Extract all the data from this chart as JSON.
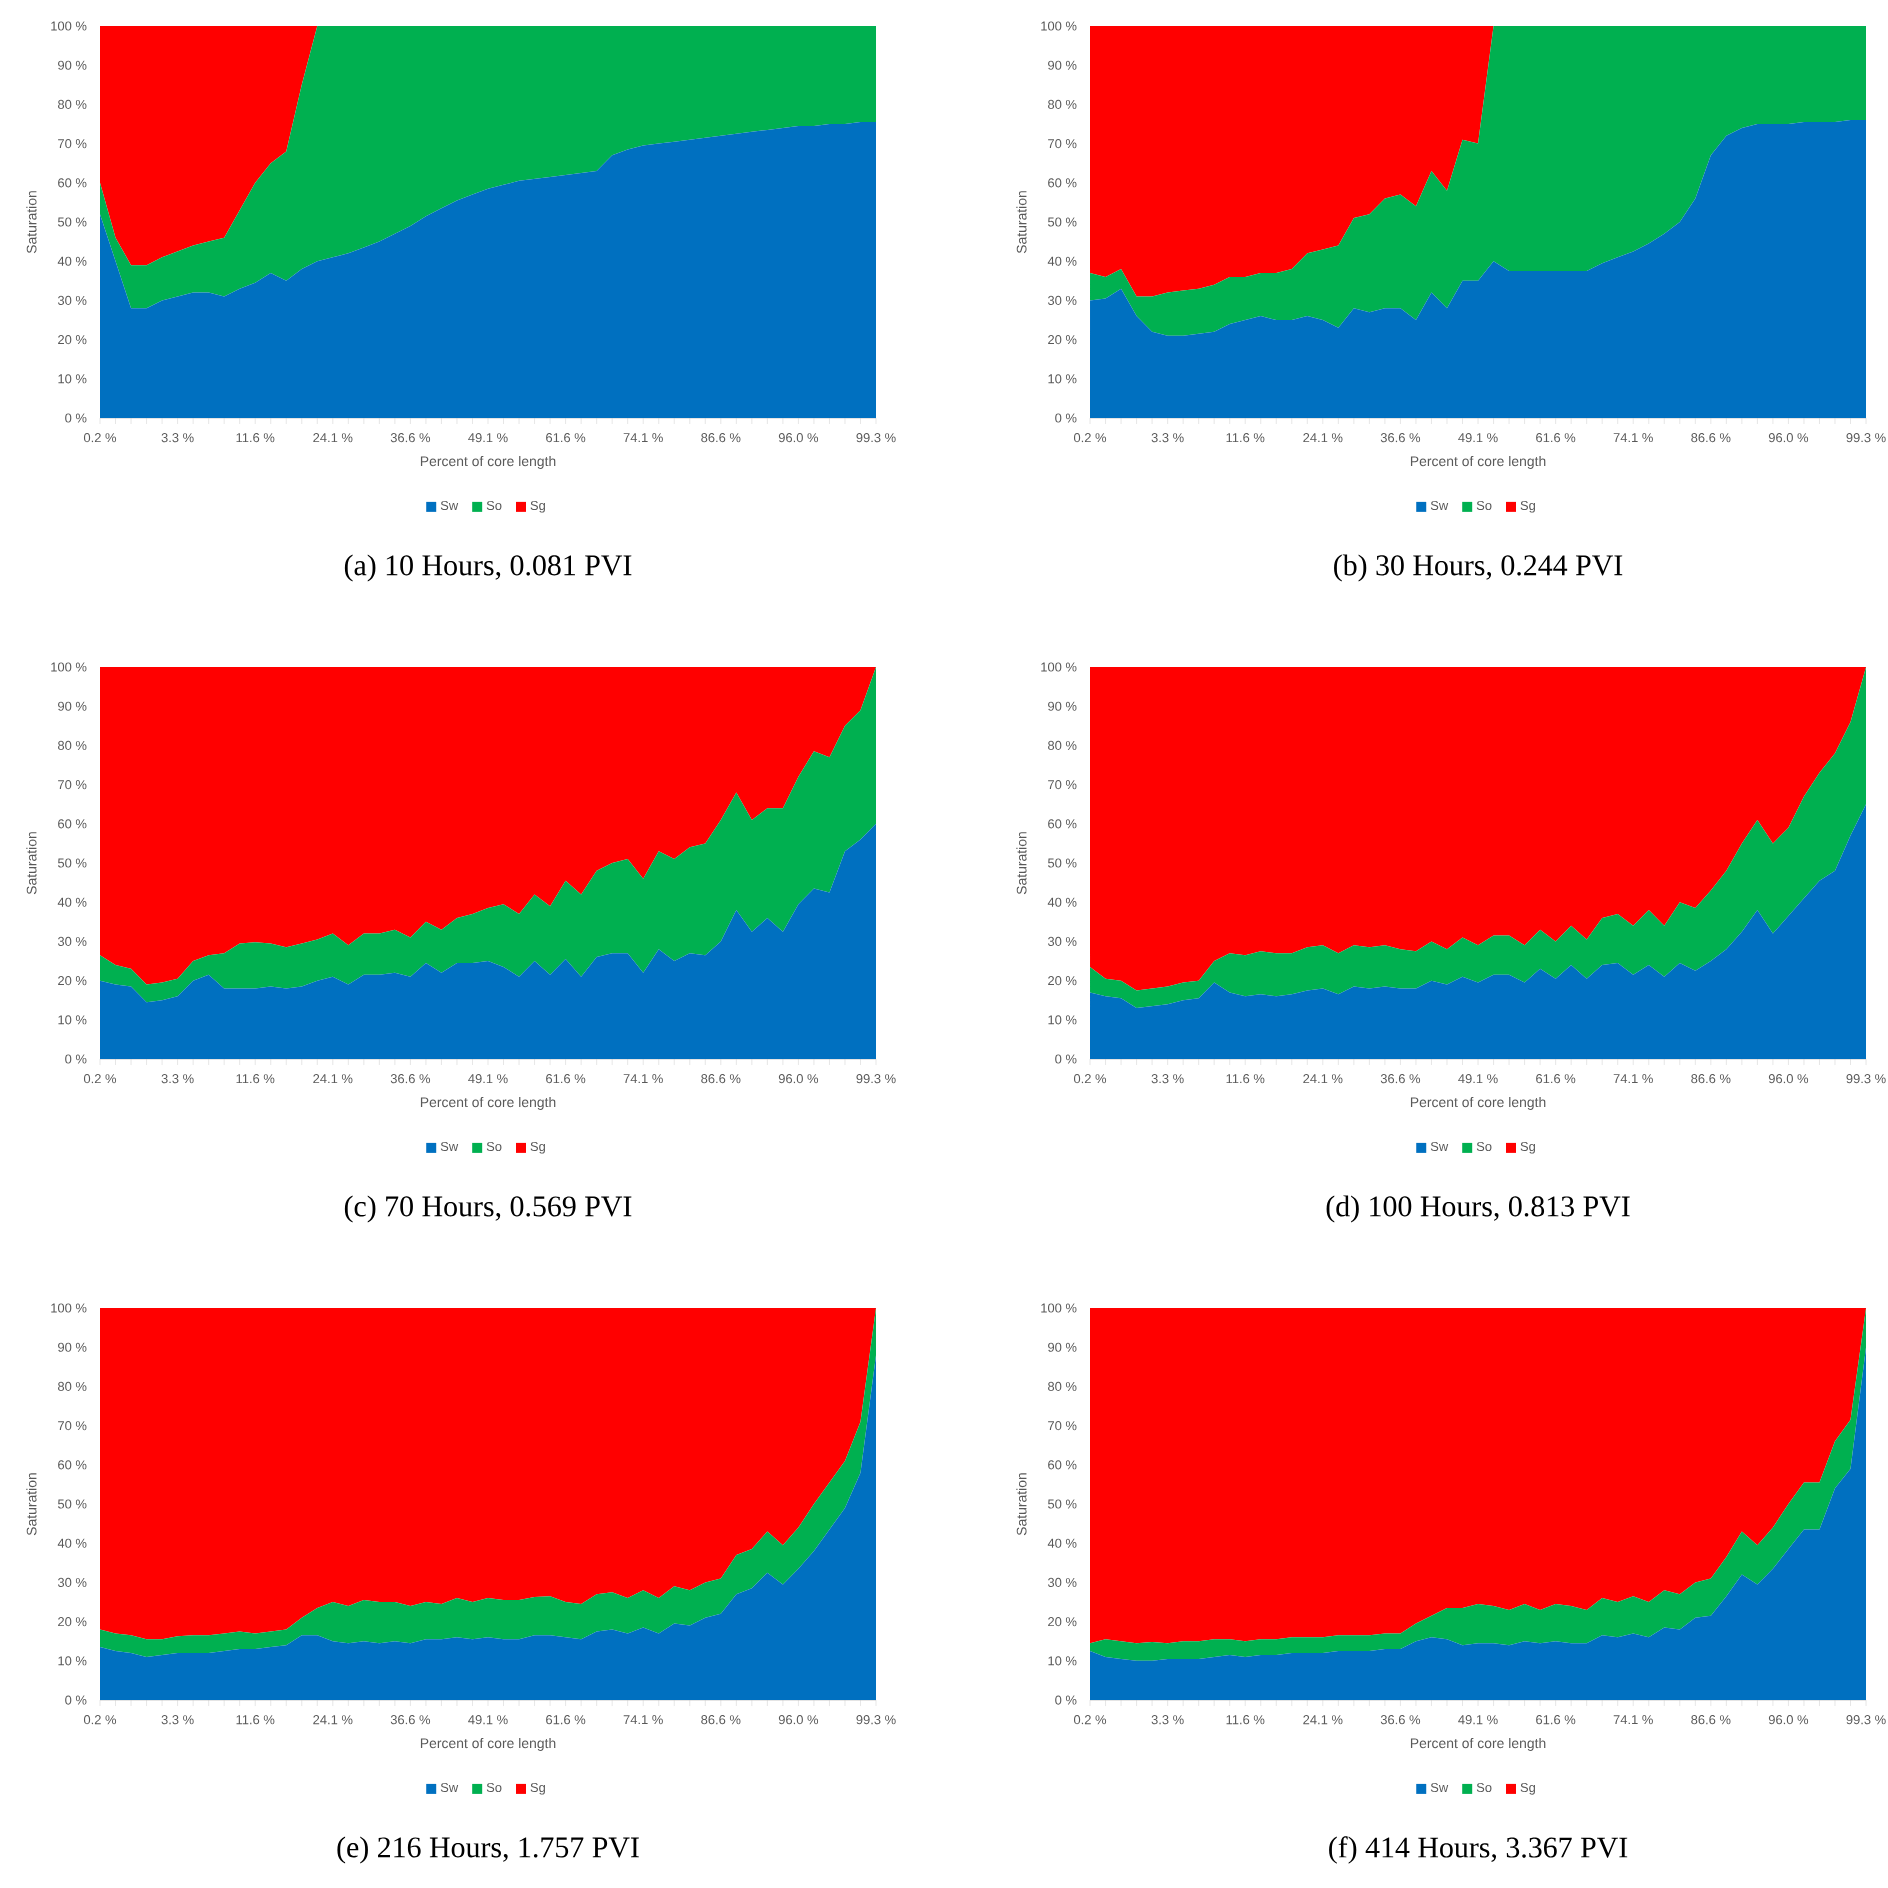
{
  "chart_data": [
    {
      "type": "area",
      "stacked": true,
      "title": "(a) 10 Hours, 0.081 PVI",
      "xlabel": "Percent of core length",
      "ylabel": "Saturation",
      "legend": "bottom",
      "ylim": [
        0,
        100
      ],
      "yticks": [
        {
          "value": 0,
          "label": "0 %"
        },
        {
          "value": 10,
          "label": "10 %"
        },
        {
          "value": 20,
          "label": "20 %"
        },
        {
          "value": 30,
          "label": "30 %"
        },
        {
          "value": 40,
          "label": "40 %"
        },
        {
          "value": 50,
          "label": "50 %"
        },
        {
          "value": 60,
          "label": "60 %"
        },
        {
          "value": 70,
          "label": "70 %"
        },
        {
          "value": 80,
          "label": "80 %"
        },
        {
          "value": 90,
          "label": "90 %"
        },
        {
          "value": 100,
          "label": "100 %"
        }
      ],
      "categories": [
        "0.2 %",
        null,
        null,
        null,
        null,
        "3.3 %",
        null,
        null,
        null,
        null,
        "11.6 %",
        null,
        null,
        null,
        null,
        "24.1 %",
        null,
        null,
        null,
        null,
        "36.6 %",
        null,
        null,
        null,
        null,
        "49.1 %",
        null,
        null,
        null,
        null,
        "61.6 %",
        null,
        null,
        null,
        null,
        "74.1 %",
        null,
        null,
        null,
        null,
        "86.6 %",
        null,
        null,
        null,
        null,
        "96.0 %",
        null,
        null,
        null,
        null,
        "99.3 %"
      ],
      "series": [
        {
          "name": "Sw",
          "color": "#0070c0",
          "values": [
            52,
            40,
            28,
            28,
            30,
            31,
            32,
            32,
            31,
            33,
            34.5,
            37,
            35,
            38,
            40,
            41,
            42,
            43.5,
            45,
            47,
            49,
            51.5,
            53.5,
            55.5,
            57,
            58.5,
            59.5,
            60.5,
            61,
            61.5,
            62,
            62.5,
            63,
            67,
            68.5,
            69.5,
            70,
            70.5,
            71,
            71.5,
            72,
            72.5,
            73,
            73.5,
            74,
            74.5,
            74.5,
            75,
            75,
            75.5,
            75.5
          ]
        },
        {
          "name": "So",
          "color": "#00b050",
          "values": [
            8,
            6,
            11,
            11,
            11,
            11.5,
            12,
            13,
            15,
            20,
            25.5,
            28,
            33,
            47,
            60,
            59,
            58,
            56.5,
            55,
            53,
            51,
            48.5,
            46.5,
            44.5,
            43,
            41.5,
            40.5,
            39.5,
            39,
            38.5,
            38,
            37.5,
            37,
            33,
            31.5,
            30.5,
            30,
            29.5,
            29,
            28.5,
            28,
            27.5,
            27,
            26.5,
            26,
            25.5,
            25.5,
            25,
            25,
            24.5,
            24.5
          ]
        },
        {
          "name": "Sg",
          "color": "#ff0000",
          "values": [
            40,
            54,
            61,
            61,
            59,
            57.5,
            56,
            55,
            54,
            47,
            40,
            35,
            32,
            15,
            0,
            0,
            0,
            0,
            0,
            0,
            0,
            0,
            0,
            0,
            0,
            0,
            0,
            0,
            0,
            0,
            0,
            0,
            0,
            0,
            0,
            0,
            0,
            0,
            0,
            0,
            0,
            0,
            0,
            0,
            0,
            0,
            0,
            0,
            0,
            0,
            0
          ]
        }
      ]
    },
    {
      "type": "area",
      "stacked": true,
      "title": "(b) 30 Hours, 0.244 PVI",
      "xlabel": "Percent of core length",
      "ylabel": "Saturation",
      "legend": "bottom",
      "ylim": [
        0,
        100
      ],
      "yticks": [
        {
          "value": 0,
          "label": "0 %"
        },
        {
          "value": 10,
          "label": "10 %"
        },
        {
          "value": 20,
          "label": "20 %"
        },
        {
          "value": 30,
          "label": "30 %"
        },
        {
          "value": 40,
          "label": "40 %"
        },
        {
          "value": 50,
          "label": "50 %"
        },
        {
          "value": 60,
          "label": "60 %"
        },
        {
          "value": 70,
          "label": "70 %"
        },
        {
          "value": 80,
          "label": "80 %"
        },
        {
          "value": 90,
          "label": "90 %"
        },
        {
          "value": 100,
          "label": "100 %"
        }
      ],
      "categories": [
        "0.2 %",
        null,
        null,
        null,
        null,
        "3.3 %",
        null,
        null,
        null,
        null,
        "11.6 %",
        null,
        null,
        null,
        null,
        "24.1 %",
        null,
        null,
        null,
        null,
        "36.6 %",
        null,
        null,
        null,
        null,
        "49.1 %",
        null,
        null,
        null,
        null,
        "61.6 %",
        null,
        null,
        null,
        null,
        "74.1 %",
        null,
        null,
        null,
        null,
        "86.6 %",
        null,
        null,
        null,
        null,
        "96.0 %",
        null,
        null,
        null,
        null,
        "99.3 %"
      ],
      "series": [
        {
          "name": "Sw",
          "color": "#0070c0",
          "values": [
            30,
            30.5,
            33,
            26,
            22,
            21,
            21,
            21.5,
            22,
            24,
            25,
            26,
            25,
            25,
            26,
            25,
            23,
            28,
            27,
            28,
            28,
            25,
            32,
            28,
            35,
            35,
            40,
            37.5,
            37.5,
            37.5,
            37.5,
            37.5,
            37.5,
            39.5,
            41,
            42.5,
            44.5,
            47,
            50,
            56,
            67,
            72,
            74,
            75,
            75,
            75,
            75.5,
            75.5,
            75.5,
            76,
            76
          ]
        },
        {
          "name": "So",
          "color": "#00b050",
          "values": [
            7,
            5.5,
            5,
            5,
            9,
            11,
            11.5,
            11.5,
            12,
            12,
            11,
            11,
            12,
            13,
            16,
            18,
            21,
            23,
            25,
            28,
            29,
            29,
            31,
            30,
            36,
            35,
            60,
            62.5,
            62.5,
            62.5,
            62.5,
            62.5,
            62.5,
            60.5,
            59,
            57.5,
            55.5,
            53,
            50,
            44,
            33,
            28,
            26,
            25,
            25,
            25,
            24.5,
            24.5,
            24.5,
            24,
            24
          ]
        },
        {
          "name": "Sg",
          "color": "#ff0000",
          "values": [
            63,
            64,
            62,
            69,
            69,
            68,
            67.5,
            67,
            66,
            64,
            64,
            63,
            63,
            62,
            58,
            57,
            56,
            49,
            48,
            44,
            43,
            46,
            37,
            42,
            29,
            30,
            0,
            0,
            0,
            0,
            0,
            0,
            0,
            0,
            0,
            0,
            0,
            0,
            0,
            0,
            0,
            0,
            0,
            0,
            0,
            0,
            0,
            0,
            0,
            0,
            0
          ]
        }
      ]
    },
    {
      "type": "area",
      "stacked": true,
      "title": "(c) 70 Hours, 0.569 PVI",
      "xlabel": "Percent of core length",
      "ylabel": "Saturation",
      "legend": "bottom",
      "ylim": [
        0,
        100
      ],
      "yticks": [
        {
          "value": 0,
          "label": "0 %"
        },
        {
          "value": 10,
          "label": "10 %"
        },
        {
          "value": 20,
          "label": "20 %"
        },
        {
          "value": 30,
          "label": "30 %"
        },
        {
          "value": 40,
          "label": "40 %"
        },
        {
          "value": 50,
          "label": "50 %"
        },
        {
          "value": 60,
          "label": "60 %"
        },
        {
          "value": 70,
          "label": "70 %"
        },
        {
          "value": 80,
          "label": "80 %"
        },
        {
          "value": 90,
          "label": "90 %"
        },
        {
          "value": 100,
          "label": "100 %"
        }
      ],
      "categories": [
        "0.2 %",
        null,
        null,
        null,
        null,
        "3.3 %",
        null,
        null,
        null,
        null,
        "11.6 %",
        null,
        null,
        null,
        null,
        "24.1 %",
        null,
        null,
        null,
        null,
        "36.6 %",
        null,
        null,
        null,
        null,
        "49.1 %",
        null,
        null,
        null,
        null,
        "61.6 %",
        null,
        null,
        null,
        null,
        "74.1 %",
        null,
        null,
        null,
        null,
        "86.6 %",
        null,
        null,
        null,
        null,
        "96.0 %",
        null,
        null,
        null,
        null,
        "99.3 %"
      ],
      "series": [
        {
          "name": "Sw",
          "color": "#0070c0",
          "values": [
            20,
            19,
            18.5,
            14.5,
            15,
            16,
            20,
            21.5,
            18,
            18,
            18,
            18.5,
            18,
            18.5,
            20,
            21,
            19,
            21.5,
            21.5,
            22,
            21,
            24.5,
            22,
            24.5,
            24.5,
            25,
            23.5,
            21,
            25,
            21.5,
            25.5,
            21,
            26,
            27,
            27,
            22,
            28,
            25,
            27,
            26.5,
            30,
            38,
            32.5,
            36,
            32.5,
            39.5,
            43.5,
            42.5,
            53,
            56,
            60
          ]
        },
        {
          "name": "So",
          "color": "#00b050",
          "values": [
            6.5,
            5,
            4.5,
            4.5,
            4.5,
            4.5,
            5,
            5,
            9,
            11.5,
            11.8,
            11,
            10.5,
            11,
            10.5,
            11,
            10,
            10.5,
            10.5,
            11,
            10,
            10.5,
            11,
            11.5,
            12.5,
            13.5,
            16,
            16,
            17,
            17.5,
            20,
            21,
            22,
            23,
            24,
            24,
            25,
            26,
            27,
            28.5,
            31,
            30,
            28.5,
            28,
            31.5,
            32.5,
            35,
            34.5,
            32,
            33,
            40
          ]
        },
        {
          "name": "Sg",
          "color": "#ff0000",
          "values": [
            73.5,
            76,
            77,
            81,
            80.5,
            79.5,
            75,
            73.5,
            73,
            70.5,
            70.2,
            70.5,
            71.5,
            70.5,
            69.5,
            68,
            71,
            68,
            68,
            67,
            69,
            65,
            67,
            64,
            63,
            61.5,
            60.5,
            63,
            58,
            61,
            54.5,
            58,
            52,
            50,
            49,
            54,
            47,
            49,
            46,
            45,
            39,
            32,
            39,
            36,
            36,
            28,
            21.5,
            23,
            15,
            11,
            0
          ]
        }
      ]
    },
    {
      "type": "area",
      "stacked": true,
      "title": "(d) 100 Hours, 0.813 PVI",
      "xlabel": "Percent of core length",
      "ylabel": "Saturation",
      "legend": "bottom",
      "ylim": [
        0,
        100
      ],
      "yticks": [
        {
          "value": 0,
          "label": "0 %"
        },
        {
          "value": 10,
          "label": "10 %"
        },
        {
          "value": 20,
          "label": "20 %"
        },
        {
          "value": 30,
          "label": "30 %"
        },
        {
          "value": 40,
          "label": "40 %"
        },
        {
          "value": 50,
          "label": "50 %"
        },
        {
          "value": 60,
          "label": "60 %"
        },
        {
          "value": 70,
          "label": "70 %"
        },
        {
          "value": 80,
          "label": "80 %"
        },
        {
          "value": 90,
          "label": "90 %"
        },
        {
          "value": 100,
          "label": "100 %"
        }
      ],
      "categories": [
        "0.2 %",
        null,
        null,
        null,
        null,
        "3.3 %",
        null,
        null,
        null,
        null,
        "11.6 %",
        null,
        null,
        null,
        null,
        "24.1 %",
        null,
        null,
        null,
        null,
        "36.6 %",
        null,
        null,
        null,
        null,
        "49.1 %",
        null,
        null,
        null,
        null,
        "61.6 %",
        null,
        null,
        null,
        null,
        "74.1 %",
        null,
        null,
        null,
        null,
        "86.6 %",
        null,
        null,
        null,
        null,
        "96.0 %",
        null,
        null,
        null,
        null,
        "99.3 %"
      ],
      "series": [
        {
          "name": "Sw",
          "color": "#0070c0",
          "values": [
            17,
            16,
            15.5,
            13,
            13.5,
            14,
            15,
            15.5,
            19.5,
            17,
            16,
            16.5,
            16,
            16.5,
            17.5,
            18,
            16.5,
            18.5,
            18,
            18.5,
            18,
            18,
            20,
            19,
            21,
            19.5,
            21.5,
            21.5,
            19.5,
            23,
            20.5,
            24,
            20.5,
            24,
            24.5,
            21.5,
            24,
            21,
            24.5,
            22.5,
            25,
            28,
            32.5,
            38,
            32,
            36.5,
            41,
            45.5,
            48,
            57,
            65
          ]
        },
        {
          "name": "So",
          "color": "#00b050",
          "values": [
            6.5,
            4.5,
            4.5,
            4.5,
            4.5,
            4.5,
            4.5,
            4.5,
            5.5,
            10,
            10.5,
            11,
            11,
            10.5,
            11,
            11,
            10.5,
            10.5,
            10.5,
            10.5,
            10,
            9.5,
            10,
            9,
            10,
            9.5,
            10,
            10,
            9.5,
            10,
            9.5,
            10,
            10,
            12,
            12.5,
            12.5,
            14,
            13,
            15.5,
            16,
            18,
            20,
            22.5,
            23,
            23,
            22.5,
            26,
            27.5,
            30,
            29,
            35
          ]
        },
        {
          "name": "Sg",
          "color": "#ff0000",
          "values": [
            76.5,
            79.5,
            80,
            82.5,
            82,
            81.5,
            80.5,
            80,
            75,
            73,
            73.5,
            72.5,
            73,
            73,
            71.5,
            71,
            73,
            71,
            71.5,
            71,
            72,
            72.5,
            70,
            72,
            69,
            71,
            68.5,
            68.5,
            71,
            67,
            70,
            66,
            69.5,
            64,
            63,
            66,
            62,
            66,
            60,
            61.5,
            57,
            52,
            45,
            39,
            45,
            41,
            33,
            27,
            22,
            14,
            0
          ]
        }
      ]
    },
    {
      "type": "area",
      "stacked": true,
      "title": "(e) 216 Hours, 1.757 PVI",
      "xlabel": "Percent of core length",
      "ylabel": "Saturation",
      "legend": "bottom",
      "ylim": [
        0,
        100
      ],
      "yticks": [
        {
          "value": 0,
          "label": "0 %"
        },
        {
          "value": 10,
          "label": "10 %"
        },
        {
          "value": 20,
          "label": "20 %"
        },
        {
          "value": 30,
          "label": "30 %"
        },
        {
          "value": 40,
          "label": "40 %"
        },
        {
          "value": 50,
          "label": "50 %"
        },
        {
          "value": 60,
          "label": "60 %"
        },
        {
          "value": 70,
          "label": "70 %"
        },
        {
          "value": 80,
          "label": "80 %"
        },
        {
          "value": 90,
          "label": "90 %"
        },
        {
          "value": 100,
          "label": "100 %"
        }
      ],
      "categories": [
        "0.2 %",
        null,
        null,
        null,
        null,
        "3.3 %",
        null,
        null,
        null,
        null,
        "11.6 %",
        null,
        null,
        null,
        null,
        "24.1 %",
        null,
        null,
        null,
        null,
        "36.6 %",
        null,
        null,
        null,
        null,
        "49.1 %",
        null,
        null,
        null,
        null,
        "61.6 %",
        null,
        null,
        null,
        null,
        "74.1 %",
        null,
        null,
        null,
        null,
        "86.6 %",
        null,
        null,
        null,
        null,
        "96.0 %",
        null,
        null,
        null,
        null,
        "99.3 %"
      ],
      "series": [
        {
          "name": "Sw",
          "color": "#0070c0",
          "values": [
            13.5,
            12.5,
            12,
            11,
            11.5,
            12,
            12,
            12,
            12.5,
            13,
            13,
            13.5,
            14,
            16.5,
            16.5,
            15,
            14.5,
            15,
            14.5,
            15,
            14.5,
            15.5,
            15.5,
            16,
            15.5,
            16,
            15.5,
            15.5,
            16.5,
            16.5,
            16,
            15.5,
            17.5,
            18,
            17,
            18.5,
            17,
            19.5,
            19,
            21,
            22,
            27,
            28.5,
            32.5,
            29.5,
            33.5,
            38,
            43.5,
            49,
            58,
            88
          ]
        },
        {
          "name": "So",
          "color": "#00b050",
          "values": [
            4.5,
            4.5,
            4.5,
            4.5,
            4,
            4.3,
            4.5,
            4.5,
            4.5,
            4.5,
            4,
            4,
            4,
            4.5,
            7,
            10,
            9.5,
            10.5,
            10.5,
            10,
            9.5,
            9.5,
            9,
            10,
            9.5,
            10,
            10,
            10,
            9.8,
            10,
            9,
            9,
            9.5,
            9.5,
            9,
            9.5,
            9,
            9.5,
            9,
            9,
            9,
            10,
            10,
            10.5,
            10,
            10.5,
            12,
            12,
            12,
            13,
            12
          ]
        },
        {
          "name": "Sg",
          "color": "#ff0000",
          "values": [
            82,
            83,
            83.5,
            84.5,
            84.5,
            83.7,
            83.5,
            83.5,
            83,
            82.5,
            83,
            82.5,
            82,
            79,
            76.5,
            75,
            76,
            74.5,
            75,
            75,
            76,
            75,
            75.5,
            74,
            75,
            74,
            74.5,
            74.5,
            73.7,
            73.5,
            75,
            75.5,
            73,
            72.5,
            74,
            72,
            74,
            71,
            72,
            70,
            69,
            63,
            61.5,
            57,
            60.5,
            56,
            50,
            44.5,
            39,
            29,
            0
          ]
        }
      ]
    },
    {
      "type": "area",
      "stacked": true,
      "title": "(f) 414 Hours, 3.367 PVI",
      "xlabel": "Percent of core length",
      "ylabel": "Saturation",
      "legend": "bottom",
      "ylim": [
        0,
        100
      ],
      "yticks": [
        {
          "value": 0,
          "label": "0 %"
        },
        {
          "value": 10,
          "label": "10 %"
        },
        {
          "value": 20,
          "label": "20 %"
        },
        {
          "value": 30,
          "label": "30 %"
        },
        {
          "value": 40,
          "label": "40 %"
        },
        {
          "value": 50,
          "label": "50 %"
        },
        {
          "value": 60,
          "label": "60 %"
        },
        {
          "value": 70,
          "label": "70 %"
        },
        {
          "value": 80,
          "label": "80 %"
        },
        {
          "value": 90,
          "label": "90 %"
        },
        {
          "value": 100,
          "label": "100 %"
        }
      ],
      "categories": [
        "0.2 %",
        null,
        null,
        null,
        null,
        "3.3 %",
        null,
        null,
        null,
        null,
        "11.6 %",
        null,
        null,
        null,
        null,
        "24.1 %",
        null,
        null,
        null,
        null,
        "36.6 %",
        null,
        null,
        null,
        null,
        "49.1 %",
        null,
        null,
        null,
        null,
        "61.6 %",
        null,
        null,
        null,
        null,
        "74.1 %",
        null,
        null,
        null,
        null,
        "86.6 %",
        null,
        null,
        null,
        null,
        "96.0 %",
        null,
        null,
        null,
        null,
        "99.3 %"
      ],
      "series": [
        {
          "name": "Sw",
          "color": "#0070c0",
          "values": [
            12.5,
            11,
            10.5,
            10,
            10,
            10.5,
            10.5,
            10.5,
            11,
            11.5,
            11,
            11.5,
            11.5,
            12,
            12,
            12,
            12.5,
            12.5,
            12.5,
            13,
            13,
            15,
            16,
            15.5,
            14,
            14.5,
            14.5,
            14,
            15,
            14.5,
            15,
            14.5,
            14.5,
            16.5,
            16,
            17,
            16,
            18.5,
            18,
            21,
            21.5,
            26.5,
            32,
            29.5,
            33.5,
            38.5,
            43.5,
            43.5,
            54,
            59,
            90
          ]
        },
        {
          "name": "So",
          "color": "#00b050",
          "values": [
            2,
            4.5,
            4.5,
            4.5,
            4.8,
            4,
            4.5,
            4.5,
            4.5,
            4,
            4,
            4,
            4,
            4,
            4,
            4,
            4,
            4,
            4,
            4,
            4,
            4.5,
            5.5,
            8,
            9.5,
            10,
            9.5,
            9,
            9.5,
            8.5,
            9.5,
            9.5,
            8.5,
            9.5,
            9,
            9.5,
            9,
            9.5,
            9,
            9,
            9.5,
            10,
            11,
            10,
            10.5,
            11.5,
            12,
            12,
            12,
            12.5,
            10
          ]
        },
        {
          "name": "Sg",
          "color": "#ff0000",
          "values": [
            85.5,
            84.5,
            85,
            85.5,
            85.2,
            85.5,
            85,
            85,
            84.5,
            84.5,
            85,
            84.5,
            84.5,
            84,
            84,
            84,
            83.5,
            83.5,
            83.5,
            83,
            83,
            80.5,
            78.5,
            76.5,
            76.5,
            75.5,
            76,
            77,
            75.5,
            77,
            75.5,
            76,
            77,
            74,
            75,
            73.5,
            75,
            72,
            73,
            70,
            69,
            63.5,
            57,
            60.5,
            56,
            50,
            44.5,
            44.5,
            34,
            28.5,
            0
          ]
        }
      ]
    }
  ]
}
